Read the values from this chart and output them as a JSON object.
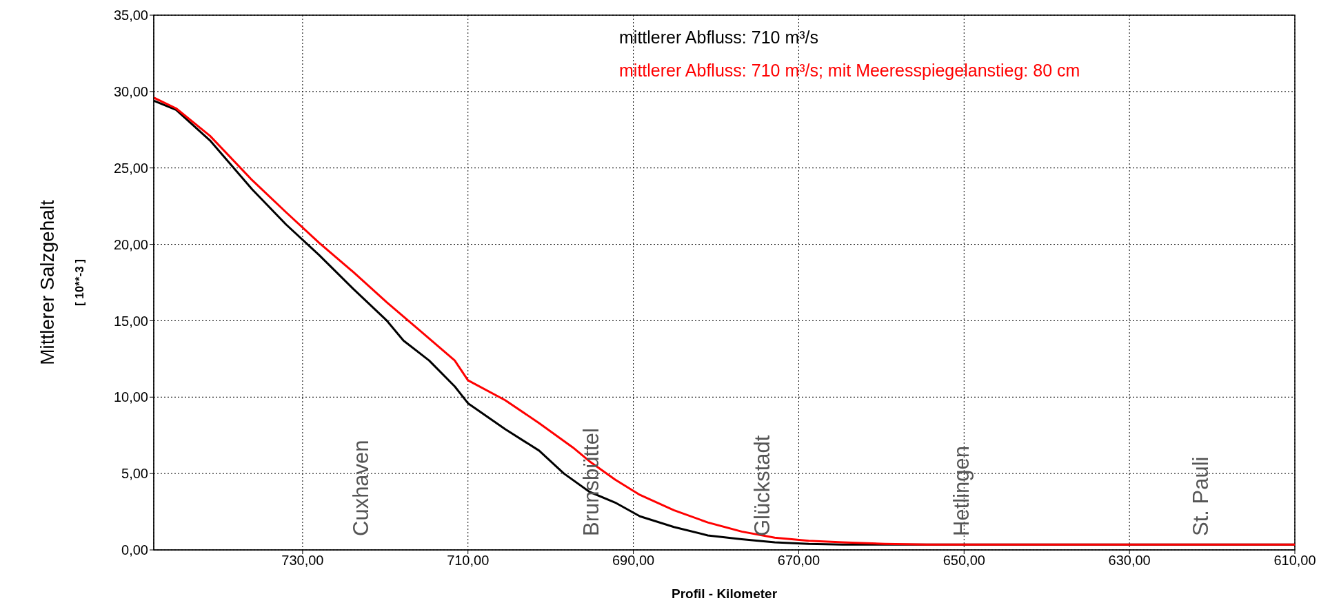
{
  "chart_data": {
    "type": "line",
    "xlabel": "Profil - Kilometer",
    "ylabel": "Mittlerer Salzgehalt\n[ 10**-3 ]",
    "xlim": [
      748,
      610
    ],
    "xticks": [
      {
        "value": 730,
        "label": "730,00"
      },
      {
        "value": 710,
        "label": "710,00"
      },
      {
        "value": 690,
        "label": "690,00"
      },
      {
        "value": 670,
        "label": "670,00"
      },
      {
        "value": 650,
        "label": "650,00"
      },
      {
        "value": 630,
        "label": "630,00"
      },
      {
        "value": 610,
        "label": "610,00"
      }
    ],
    "ylim": [
      0,
      35
    ],
    "yticks": [
      {
        "value": 0,
        "label": "0,00"
      },
      {
        "value": 5,
        "label": "5,00"
      },
      {
        "value": 10,
        "label": "10,00"
      },
      {
        "value": 15,
        "label": "15,00"
      },
      {
        "value": 20,
        "label": "20,00"
      },
      {
        "value": 25,
        "label": "25,00"
      },
      {
        "value": 30,
        "label": "30,00"
      },
      {
        "value": 35,
        "label": "35,00"
      }
    ],
    "grid": true,
    "legend": "top",
    "marker": "none",
    "line_style": "solid",
    "annotations": [
      "Cuxhaven",
      "Brunsbüttel",
      "Glückstadt",
      "Hetlingen",
      "St. Pauli"
    ],
    "series": [
      {
        "name": "mittlerer Abfluss: 710 m³/s",
        "color": "#000000",
        "x": [
          748,
          745.3,
          741.2,
          736.1,
          732,
          728,
          723.9,
          719.8,
          717.8,
          714.7,
          711.6,
          710,
          705.5,
          701.4,
          698.4,
          695.3,
          692.2,
          689.2,
          685.1,
          681,
          676.9,
          672.9,
          668.8,
          664.7,
          654.5,
          610
        ],
        "values": [
          29.4,
          28.8,
          26.8,
          23.6,
          21.3,
          19.3,
          17.1,
          15,
          13.7,
          12.4,
          10.7,
          9.6,
          7.9,
          6.5,
          5,
          3.8,
          3.1,
          2.2,
          1.5,
          0.95,
          0.7,
          0.5,
          0.4,
          0.35,
          0.35,
          0.35
        ]
      },
      {
        "name": "mittlerer Abfluss: 710 m³/s; mit Meeresspiegelanstieg: 80 cm",
        "color": "#ff0000",
        "x": [
          748,
          745.3,
          741.2,
          736.1,
          732,
          728,
          723.9,
          719.8,
          715.7,
          711.6,
          710,
          705.5,
          701.4,
          697.3,
          695.3,
          692.2,
          689.2,
          685.1,
          681,
          676.9,
          672.9,
          668.8,
          664.7,
          659.6,
          654.5,
          610
        ],
        "values": [
          29.6,
          28.9,
          27.1,
          24.2,
          22.1,
          20.1,
          18.2,
          16.2,
          14.3,
          12.4,
          11.1,
          9.8,
          8.3,
          6.7,
          5.8,
          4.6,
          3.6,
          2.6,
          1.8,
          1.2,
          0.8,
          0.6,
          0.5,
          0.4,
          0.35,
          0.35
        ]
      }
    ]
  }
}
